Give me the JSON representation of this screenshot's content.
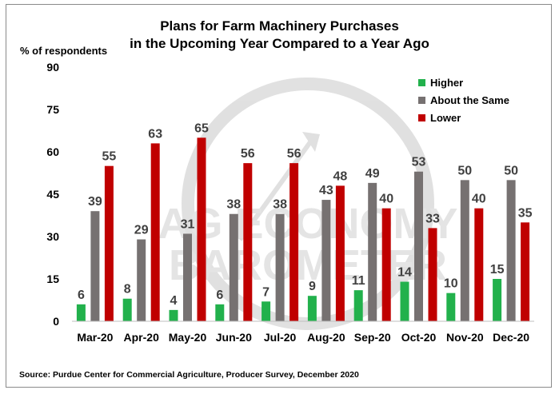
{
  "chart_data": {
    "type": "bar",
    "title_line1": "Plans for Farm Machinery Purchases",
    "title_line2": "in the Upcoming Year Compared to a Year Ago",
    "ylabel": "% of respondents",
    "source": "Source: Purdue Center for Commercial Agriculture, Producer Survey, December 2020",
    "ylim": [
      0,
      90
    ],
    "yticks": [
      0,
      15,
      30,
      45,
      60,
      75,
      90
    ],
    "categories": [
      "Mar-20",
      "Apr-20",
      "May-20",
      "Jun-20",
      "Jul-20",
      "Aug-20",
      "Sep-20",
      "Oct-20",
      "Nov-20",
      "Dec-20"
    ],
    "series": [
      {
        "name": "Higher",
        "color": "#22b14c",
        "values": [
          6,
          8,
          4,
          6,
          7,
          9,
          11,
          14,
          10,
          15
        ]
      },
      {
        "name": "About the Same",
        "color": "#767171",
        "values": [
          39,
          29,
          31,
          38,
          38,
          43,
          49,
          53,
          50,
          50
        ]
      },
      {
        "name": "Lower",
        "color": "#c00000",
        "values": [
          55,
          63,
          65,
          56,
          56,
          48,
          40,
          33,
          40,
          35
        ]
      }
    ],
    "legend_position": "top-right",
    "grid": false,
    "watermark": "AG ECONOMY BAROMETER"
  }
}
